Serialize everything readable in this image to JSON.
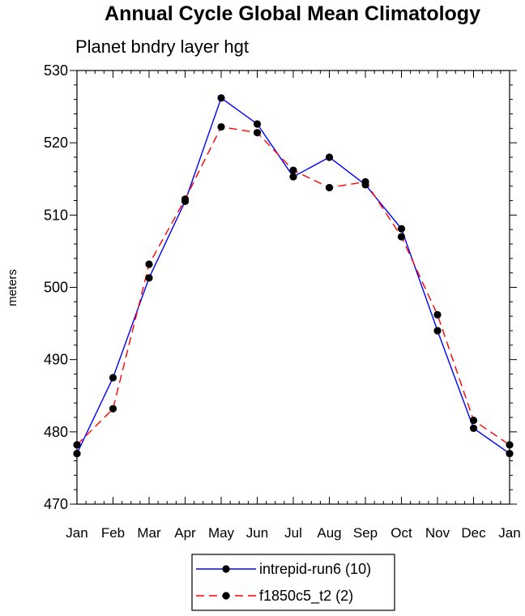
{
  "chart_data": {
    "type": "line",
    "title": "Annual Cycle Global Mean Climatology",
    "subtitle": "Planet bndry layer hgt",
    "xlabel": "",
    "ylabel": "meters",
    "categories": [
      "Jan",
      "Feb",
      "Mar",
      "Apr",
      "May",
      "Jun",
      "Jul",
      "Aug",
      "Sep",
      "Oct",
      "Nov",
      "Dec",
      "Jan"
    ],
    "ylim": [
      470,
      530
    ],
    "yticks": [
      "470",
      "480",
      "490",
      "500",
      "510",
      "520",
      "530"
    ],
    "grid": false,
    "legend_position": "bottom-center",
    "series": [
      {
        "name": "intrepid-run6 (10)",
        "color": "#0000ff",
        "style": "solid",
        "values": [
          477.0,
          487.5,
          501.3,
          511.9,
          526.2,
          522.6,
          515.3,
          518.0,
          514.2,
          508.1,
          494.0,
          480.5,
          477.0
        ]
      },
      {
        "name": "f1850c5_t2 (2)",
        "color": "#ff0000",
        "style": "dashed",
        "values": [
          478.2,
          483.2,
          503.2,
          512.2,
          522.2,
          521.4,
          516.2,
          513.8,
          514.6,
          507.0,
          496.2,
          481.6,
          478.2
        ]
      }
    ]
  }
}
